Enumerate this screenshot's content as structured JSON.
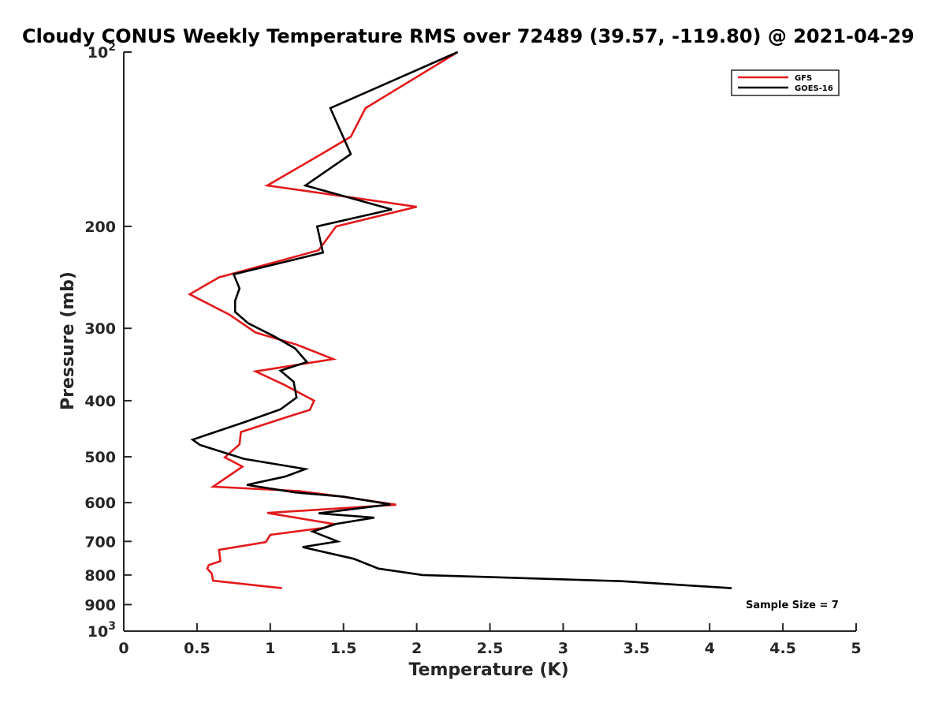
{
  "chart_data": {
    "type": "line",
    "title": "Cloudy CONUS Weekly Temperature RMS over 72489 (39.57, -119.80) @ 2021-04-29",
    "xlabel": "Temperature (K)",
    "ylabel": "Pressure (mb)",
    "xlim": [
      0,
      5
    ],
    "ylim": [
      100,
      1000
    ],
    "y_scale": "log",
    "y_reversed": true,
    "x_ticks": [
      "0",
      "0.5",
      "1",
      "1.5",
      "2",
      "2.5",
      "3",
      "3.5",
      "4",
      "4.5",
      "5"
    ],
    "x_tick_values": [
      0,
      0.5,
      1,
      1.5,
      2,
      2.5,
      3,
      3.5,
      4,
      4.5,
      5
    ],
    "y_ticks": [
      {
        "value": 100,
        "base": "10",
        "exp": "2"
      },
      {
        "value": 200,
        "label": "200"
      },
      {
        "value": 300,
        "label": "300"
      },
      {
        "value": 400,
        "label": "400"
      },
      {
        "value": 500,
        "label": "500"
      },
      {
        "value": 600,
        "label": "600"
      },
      {
        "value": 700,
        "label": "700"
      },
      {
        "value": 800,
        "label": "800"
      },
      {
        "value": 900,
        "label": "900"
      },
      {
        "value": 1000,
        "base": "10",
        "exp": "3"
      }
    ],
    "grid": false,
    "legend_position": "top-right",
    "annotation": "Sample Size = 7",
    "series": [
      {
        "name": "GFS",
        "color": "#e31a1c",
        "points": [
          [
            2.28,
            100
          ],
          [
            1.65,
            125
          ],
          [
            1.55,
            140
          ],
          [
            1.35,
            150
          ],
          [
            0.98,
            170
          ],
          [
            2.0,
            185
          ],
          [
            1.45,
            200
          ],
          [
            1.33,
            220
          ],
          [
            0.65,
            245
          ],
          [
            0.45,
            262
          ],
          [
            0.72,
            284
          ],
          [
            0.9,
            305
          ],
          [
            1.18,
            320
          ],
          [
            1.43,
            339
          ],
          [
            0.9,
            356
          ],
          [
            1.1,
            376
          ],
          [
            1.3,
            400
          ],
          [
            1.27,
            415
          ],
          [
            1.1,
            428
          ],
          [
            0.8,
            453
          ],
          [
            0.79,
            476
          ],
          [
            0.69,
            501
          ],
          [
            0.81,
            520
          ],
          [
            0.61,
            563
          ],
          [
            1.2,
            573
          ],
          [
            1.45,
            584
          ],
          [
            1.86,
            605
          ],
          [
            0.98,
            625
          ],
          [
            1.43,
            653
          ],
          [
            1.37,
            663
          ],
          [
            1.0,
            682
          ],
          [
            0.97,
            702
          ],
          [
            0.65,
            724
          ],
          [
            0.66,
            757
          ],
          [
            0.58,
            769
          ],
          [
            0.57,
            780
          ],
          [
            0.6,
            795
          ],
          [
            0.61,
            818
          ],
          [
            1.08,
            843
          ]
        ]
      },
      {
        "name": "GOES-16",
        "color": "#000000",
        "points": [
          [
            2.28,
            100
          ],
          [
            1.41,
            125
          ],
          [
            1.55,
            150
          ],
          [
            1.24,
            170
          ],
          [
            1.83,
            187
          ],
          [
            1.32,
            200
          ],
          [
            1.36,
            222
          ],
          [
            0.75,
            242
          ],
          [
            0.79,
            256
          ],
          [
            0.76,
            269
          ],
          [
            0.76,
            281
          ],
          [
            0.85,
            294
          ],
          [
            1.03,
            310
          ],
          [
            1.17,
            325
          ],
          [
            1.25,
            343
          ],
          [
            1.07,
            355
          ],
          [
            1.16,
            371
          ],
          [
            1.18,
            395
          ],
          [
            1.07,
            414
          ],
          [
            0.82,
            436
          ],
          [
            0.47,
            467
          ],
          [
            0.52,
            477
          ],
          [
            0.82,
            504
          ],
          [
            1.24,
            525
          ],
          [
            1.1,
            541
          ],
          [
            0.84,
            559
          ],
          [
            1.17,
            576
          ],
          [
            1.5,
            586
          ],
          [
            1.82,
            604
          ],
          [
            1.33,
            626
          ],
          [
            1.71,
            637
          ],
          [
            1.45,
            653
          ],
          [
            1.29,
            673
          ],
          [
            1.46,
            700
          ],
          [
            1.22,
            716
          ],
          [
            1.57,
            750
          ],
          [
            1.74,
            780
          ],
          [
            2.04,
            800
          ],
          [
            3.4,
            820
          ],
          [
            4.15,
            843
          ]
        ]
      }
    ]
  }
}
